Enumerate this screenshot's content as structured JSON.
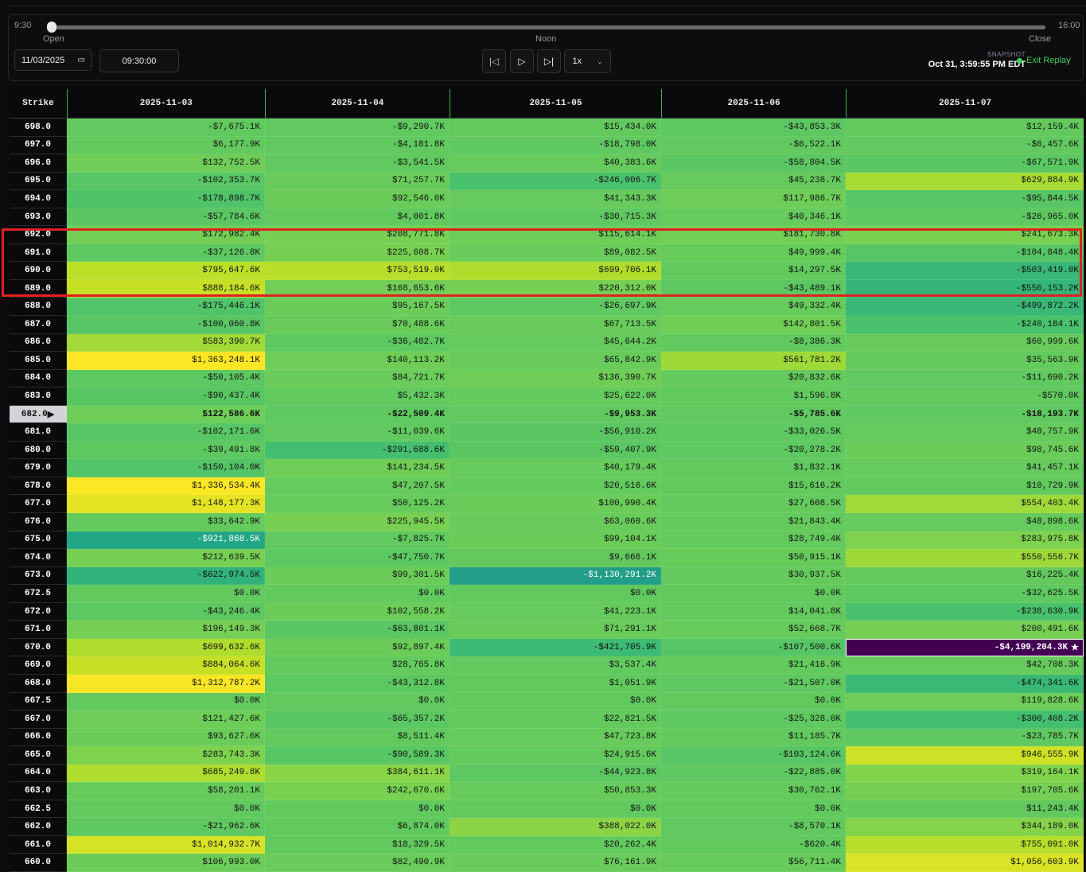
{
  "timeline": {
    "start": "9:30",
    "end": "16:00",
    "open": "Open",
    "noon": "Noon",
    "close": "Close",
    "position": 0
  },
  "controls": {
    "date": "11/03/2025",
    "time": "09:30:00",
    "speed": "1x"
  },
  "snapshot": {
    "label": "SNAPSHOT",
    "value": "Oct 31, 3:59:55 PM EDT"
  },
  "exit_label": "Exit Replay",
  "table": {
    "strike_header": "Strike",
    "columns": [
      "2025-11-03",
      "2025-11-04",
      "2025-11-05",
      "2025-11-06",
      "2025-11-07"
    ],
    "current_strike": "682.0",
    "current_marker": "▶",
    "max_marker": "★",
    "scale": {
      "min": -4199204.3,
      "max": 1363248.1,
      "colormap": "viridis"
    },
    "rows": [
      {
        "strike": "698.0",
        "values": [
          "-$7,675.1K",
          "-$9,290.7K",
          "$15,434.0K",
          "-$43,853.3K",
          "$12,159.4K"
        ]
      },
      {
        "strike": "697.0",
        "values": [
          "$6,177.9K",
          "-$4,181.8K",
          "-$18,798.0K",
          "-$6,522.1K",
          "-$6,457.6K"
        ]
      },
      {
        "strike": "696.0",
        "values": [
          "$132,752.5K",
          "-$3,541.5K",
          "$40,383.6K",
          "-$58,804.5K",
          "-$67,571.9K"
        ]
      },
      {
        "strike": "695.0",
        "values": [
          "-$102,353.7K",
          "$71,257.7K",
          "-$246,006.7K",
          "$45,238.7K",
          "$629,884.9K"
        ]
      },
      {
        "strike": "694.0",
        "values": [
          "-$178,898.7K",
          "$92,546.0K",
          "$41,343.3K",
          "$117,986.7K",
          "-$95,844.5K"
        ]
      },
      {
        "strike": "693.0",
        "values": [
          "-$57,784.6K",
          "$4,001.8K",
          "-$30,715.3K",
          "$40,346.1K",
          "-$26,965.0K"
        ]
      },
      {
        "strike": "692.0",
        "values": [
          "$172,982.4K",
          "$208,771.8K",
          "$115,614.1K",
          "$181,730.8K",
          "$241,673.3K"
        ]
      },
      {
        "strike": "691.0",
        "values": [
          "-$37,126.8K",
          "$225,608.7K",
          "$89,082.5K",
          "$49,999.4K",
          "-$104,848.4K"
        ]
      },
      {
        "strike": "690.0",
        "values": [
          "$795,647.6K",
          "$753,519.0K",
          "$699,706.1K",
          "$14,297.5K",
          "-$503,419.0K"
        ]
      },
      {
        "strike": "689.0",
        "values": [
          "$888,184.6K",
          "$168,653.6K",
          "$220,312.0K",
          "-$43,489.1K",
          "-$556,153.2K"
        ]
      },
      {
        "strike": "688.0",
        "values": [
          "-$175,446.1K",
          "$95,167.5K",
          "-$26,697.9K",
          "$49,332.4K",
          "-$499,872.2K"
        ]
      },
      {
        "strike": "687.0",
        "values": [
          "-$100,060.8K",
          "$70,488.6K",
          "$67,713.5K",
          "$142,801.5K",
          "-$240,184.1K"
        ]
      },
      {
        "strike": "686.0",
        "values": [
          "$583,390.7K",
          "-$36,482.7K",
          "$45,644.2K",
          "-$8,386.3K",
          "$60,999.6K"
        ]
      },
      {
        "strike": "685.0",
        "values": [
          "$1,363,248.1K",
          "$140,113.2K",
          "$65,842.9K",
          "$561,781.2K",
          "$35,563.9K"
        ]
      },
      {
        "strike": "684.0",
        "values": [
          "-$50,105.4K",
          "$84,721.7K",
          "$136,390.7K",
          "$20,832.6K",
          "-$11,690.2K"
        ]
      },
      {
        "strike": "683.0",
        "values": [
          "-$90,437.4K",
          "$5,432.3K",
          "$25,622.0K",
          "$1,596.8K",
          "-$570.0K"
        ]
      },
      {
        "strike": "682.0",
        "values": [
          "$122,586.6K",
          "-$22,509.4K",
          "-$9,953.3K",
          "-$5,785.6K",
          "-$18,193.7K"
        ]
      },
      {
        "strike": "681.0",
        "values": [
          "-$102,171.6K",
          "-$11,039.6K",
          "-$56,910.2K",
          "-$33,026.5K",
          "$48,757.9K"
        ]
      },
      {
        "strike": "680.0",
        "values": [
          "-$39,491.8K",
          "-$291,688.6K",
          "-$59,407.9K",
          "-$20,278.2K",
          "$98,745.6K"
        ]
      },
      {
        "strike": "679.0",
        "values": [
          "-$150,104.0K",
          "$141,234.5K",
          "$40,179.4K",
          "$1,832.1K",
          "$41,457.1K"
        ]
      },
      {
        "strike": "678.0",
        "values": [
          "$1,336,534.4K",
          "$47,207.5K",
          "$20,516.6K",
          "$15,616.2K",
          "$10,729.9K"
        ]
      },
      {
        "strike": "677.0",
        "values": [
          "$1,148,177.3K",
          "$50,125.2K",
          "$100,990.4K",
          "$27,608.5K",
          "$554,403.4K"
        ]
      },
      {
        "strike": "676.0",
        "values": [
          "$33,642.9K",
          "$225,945.5K",
          "$63,060.6K",
          "$21,843.4K",
          "$48,898.6K"
        ]
      },
      {
        "strike": "675.0",
        "values": [
          "-$921,868.5K",
          "-$7,825.7K",
          "$99,104.1K",
          "$28,749.4K",
          "$283,975.8K"
        ]
      },
      {
        "strike": "674.0",
        "values": [
          "$212,639.5K",
          "-$47,750.7K",
          "$9,666.1K",
          "$50,915.1K",
          "$550,556.7K"
        ]
      },
      {
        "strike": "673.0",
        "values": [
          "-$622,974.5K",
          "$99,301.5K",
          "-$1,130,291.2K",
          "$30,937.5K",
          "$16,225.4K"
        ]
      },
      {
        "strike": "672.5",
        "values": [
          "$0.0K",
          "$0.0K",
          "$0.0K",
          "$0.0K",
          "-$32,625.5K"
        ]
      },
      {
        "strike": "672.0",
        "values": [
          "-$43,246.4K",
          "$102,558.2K",
          "$41,223.1K",
          "$14,041.8K",
          "-$238,630.9K"
        ]
      },
      {
        "strike": "671.0",
        "values": [
          "$196,149.3K",
          "-$63,801.1K",
          "$71,291.1K",
          "$52,668.7K",
          "$200,491.6K"
        ]
      },
      {
        "strike": "670.0",
        "values": [
          "$699,632.6K",
          "$92,897.4K",
          "-$421,705.9K",
          "-$107,500.6K",
          "-$4,199,204.3K"
        ]
      },
      {
        "strike": "669.0",
        "values": [
          "$884,064.6K",
          "$28,765.8K",
          "$3,537.4K",
          "$21,416.9K",
          "$42,708.3K"
        ]
      },
      {
        "strike": "668.0",
        "values": [
          "$1,312,787.2K",
          "-$43,312.8K",
          "$1,051.9K",
          "-$21,507.0K",
          "-$474,341.6K"
        ]
      },
      {
        "strike": "667.5",
        "values": [
          "$0.0K",
          "$0.0K",
          "$0.0K",
          "$0.0K",
          "$119,828.6K"
        ]
      },
      {
        "strike": "667.0",
        "values": [
          "$121,427.6K",
          "-$65,357.2K",
          "$22,821.5K",
          "-$25,328.0K",
          "-$300,408.2K"
        ]
      },
      {
        "strike": "666.0",
        "values": [
          "$93,627.6K",
          "$8,511.4K",
          "$47,723.8K",
          "$11,185.7K",
          "-$23,785.7K"
        ]
      },
      {
        "strike": "665.0",
        "values": [
          "$283,743.3K",
          "-$90,589.3K",
          "$24,915.6K",
          "-$103,124.6K",
          "$946,555.9K"
        ]
      },
      {
        "strike": "664.0",
        "values": [
          "$685,249.8K",
          "$384,611.1K",
          "-$44,923.8K",
          "-$22,885.0K",
          "$319,164.1K"
        ]
      },
      {
        "strike": "663.0",
        "values": [
          "$58,201.1K",
          "$242,670.6K",
          "$50,853.3K",
          "$30,762.1K",
          "$197,705.6K"
        ]
      },
      {
        "strike": "662.5",
        "values": [
          "$0.0K",
          "$0.0K",
          "$0.0K",
          "$0.0K",
          "$11,243.4K"
        ]
      },
      {
        "strike": "662.0",
        "values": [
          "-$21,962.6K",
          "$6,874.0K",
          "$388,022.0K",
          "-$8,570.1K",
          "$344,189.0K"
        ]
      },
      {
        "strike": "661.0",
        "values": [
          "$1,014,932.7K",
          "$18,329.5K",
          "$20,262.4K",
          "-$620.4K",
          "$755,091.0K"
        ]
      },
      {
        "strike": "660.0",
        "values": [
          "$106,993.0K",
          "$82,490.9K",
          "$76,161.9K",
          "$56,711.4K",
          "$1,056,603.9K"
        ]
      }
    ]
  }
}
